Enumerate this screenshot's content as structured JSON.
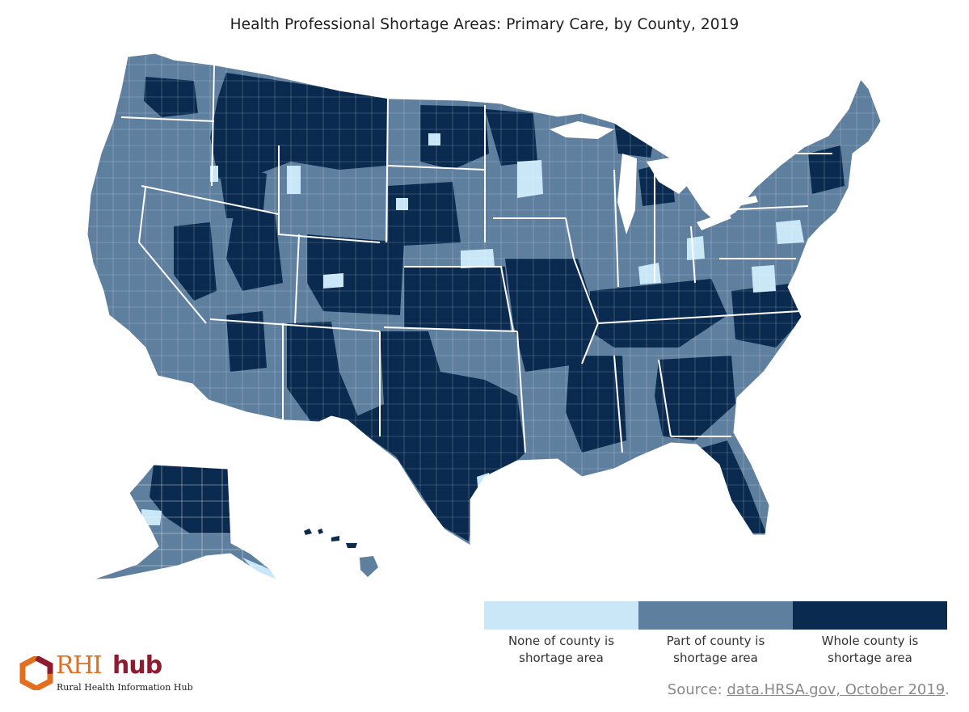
{
  "title": "Health Professional Shortage Areas: Primary Care, by County, 2019",
  "colors": {
    "none": "#c9e7f7",
    "part": "#5f7f9f",
    "whole": "#0a2a4f",
    "border": "#ffffff",
    "logo_orange": "#e36f1e",
    "logo_red": "#8e1b2f"
  },
  "legend": {
    "items": [
      {
        "color": "#c9e7f7",
        "line1": "None of county is",
        "line2": "shortage area"
      },
      {
        "color": "#5f7f9f",
        "line1": "Part of county is",
        "line2": "shortage area"
      },
      {
        "color": "#0a2a4f",
        "line1": "Whole county is",
        "line2": "shortage area"
      }
    ]
  },
  "source": {
    "prefix": "Source: ",
    "link_text": "data.HRSA.gov, October 2019",
    "suffix": "."
  },
  "logo": {
    "rhi": "RHI",
    "hub": "hub",
    "tagline": "Rural Health Information Hub"
  }
}
